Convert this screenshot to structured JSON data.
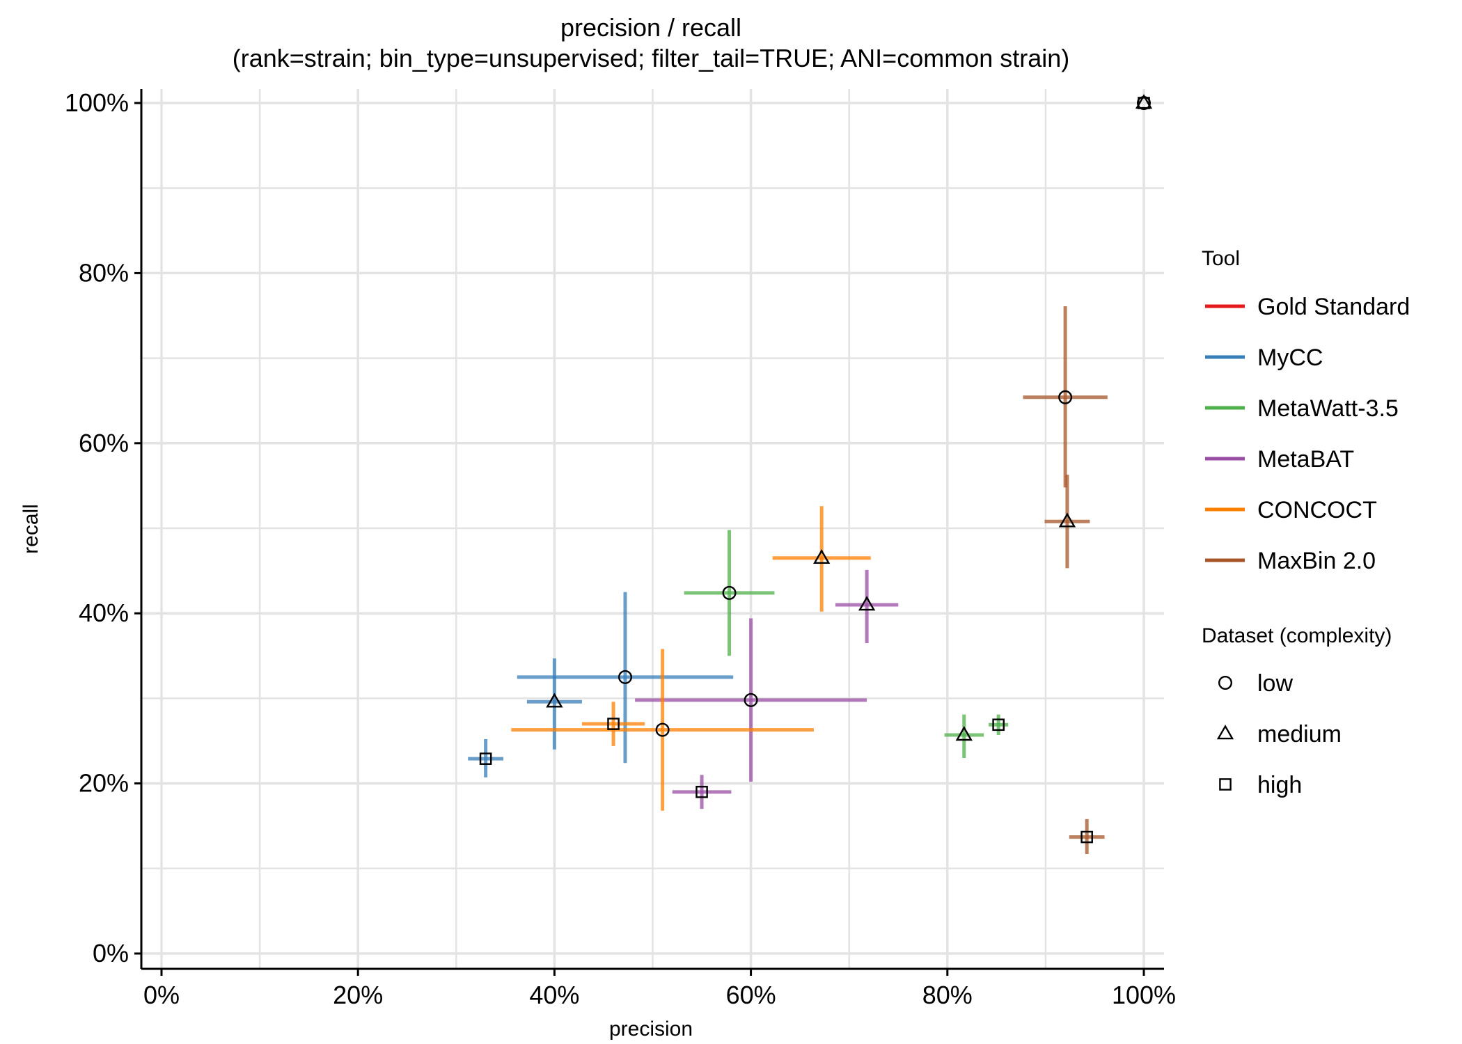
{
  "chart_data": {
    "type": "scatter",
    "title": "precision / recall",
    "subtitle": "(rank=strain; bin_type=unsupervised; filter_tail=TRUE; ANI=common strain)",
    "xlabel": "precision",
    "ylabel": "recall",
    "xlim": [
      -0.02,
      1.02
    ],
    "ylim": [
      -0.02,
      1.02
    ],
    "x_ticks": [
      0,
      0.2,
      0.4,
      0.6,
      0.8,
      1.0
    ],
    "x_tick_labels": [
      "0%",
      "20%",
      "40%",
      "60%",
      "80%",
      "100%"
    ],
    "y_ticks": [
      0,
      0.2,
      0.4,
      0.6,
      0.8,
      1.0
    ],
    "y_tick_labels": [
      "0%",
      "20%",
      "40%",
      "60%",
      "80%",
      "100%"
    ],
    "grid": true,
    "legend_position": "right",
    "legend_tool_title": "Tool",
    "legend_dataset_title": "Dataset (complexity)",
    "tools": [
      {
        "name": "Gold Standard",
        "color": "#e41a1c"
      },
      {
        "name": "MyCC",
        "color": "#377eb8"
      },
      {
        "name": "MetaWatt-3.5",
        "color": "#4daf4a"
      },
      {
        "name": "MetaBAT",
        "color": "#984ea3"
      },
      {
        "name": "CONCOCT",
        "color": "#ff7f00"
      },
      {
        "name": "MaxBin 2.0",
        "color": "#a65628"
      }
    ],
    "datasets": [
      {
        "name": "low",
        "shape": "circle"
      },
      {
        "name": "medium",
        "shape": "triangle"
      },
      {
        "name": "high",
        "shape": "square"
      }
    ],
    "points": [
      {
        "tool": "Gold Standard",
        "dataset": "low",
        "x": 1.0,
        "y": 1.0,
        "xerr": [
          1.0,
          1.0
        ],
        "yerr": [
          1.0,
          1.0
        ]
      },
      {
        "tool": "Gold Standard",
        "dataset": "medium",
        "x": 1.0,
        "y": 1.0,
        "xerr": [
          1.0,
          1.0
        ],
        "yerr": [
          1.0,
          1.0
        ]
      },
      {
        "tool": "Gold Standard",
        "dataset": "high",
        "x": 1.0,
        "y": 1.0,
        "xerr": [
          1.0,
          1.0
        ],
        "yerr": [
          1.0,
          1.0
        ]
      },
      {
        "tool": "MyCC",
        "dataset": "low",
        "x": 0.472,
        "y": 0.325,
        "xerr": [
          0.362,
          0.582
        ],
        "yerr": [
          0.224,
          0.425
        ]
      },
      {
        "tool": "MyCC",
        "dataset": "medium",
        "x": 0.4,
        "y": 0.296,
        "xerr": [
          0.372,
          0.428
        ],
        "yerr": [
          0.24,
          0.347
        ]
      },
      {
        "tool": "MyCC",
        "dataset": "high",
        "x": 0.33,
        "y": 0.229,
        "xerr": [
          0.312,
          0.348
        ],
        "yerr": [
          0.207,
          0.252
        ]
      },
      {
        "tool": "MetaWatt-3.5",
        "dataset": "low",
        "x": 0.578,
        "y": 0.424,
        "xerr": [
          0.532,
          0.624
        ],
        "yerr": [
          0.35,
          0.498
        ]
      },
      {
        "tool": "MetaWatt-3.5",
        "dataset": "medium",
        "x": 0.817,
        "y": 0.257,
        "xerr": [
          0.797,
          0.837
        ],
        "yerr": [
          0.23,
          0.281
        ]
      },
      {
        "tool": "MetaWatt-3.5",
        "dataset": "high",
        "x": 0.852,
        "y": 0.269,
        "xerr": [
          0.842,
          0.862
        ],
        "yerr": [
          0.257,
          0.281
        ]
      },
      {
        "tool": "MetaBAT",
        "dataset": "low",
        "x": 0.6,
        "y": 0.298,
        "xerr": [
          0.482,
          0.718
        ],
        "yerr": [
          0.202,
          0.394
        ]
      },
      {
        "tool": "MetaBAT",
        "dataset": "medium",
        "x": 0.718,
        "y": 0.41,
        "xerr": [
          0.686,
          0.75
        ],
        "yerr": [
          0.365,
          0.451
        ]
      },
      {
        "tool": "MetaBAT",
        "dataset": "high",
        "x": 0.55,
        "y": 0.19,
        "xerr": [
          0.52,
          0.58
        ],
        "yerr": [
          0.17,
          0.21
        ]
      },
      {
        "tool": "CONCOCT",
        "dataset": "low",
        "x": 0.51,
        "y": 0.263,
        "xerr": [
          0.356,
          0.664
        ],
        "yerr": [
          0.168,
          0.358
        ]
      },
      {
        "tool": "CONCOCT",
        "dataset": "medium",
        "x": 0.672,
        "y": 0.465,
        "xerr": [
          0.622,
          0.722
        ],
        "yerr": [
          0.402,
          0.526
        ]
      },
      {
        "tool": "CONCOCT",
        "dataset": "high",
        "x": 0.46,
        "y": 0.27,
        "xerr": [
          0.428,
          0.492
        ],
        "yerr": [
          0.244,
          0.296
        ]
      },
      {
        "tool": "MaxBin 2.0",
        "dataset": "low",
        "x": 0.92,
        "y": 0.654,
        "xerr": [
          0.877,
          0.963
        ],
        "yerr": [
          0.548,
          0.761
        ]
      },
      {
        "tool": "MaxBin 2.0",
        "dataset": "medium",
        "x": 0.922,
        "y": 0.508,
        "xerr": [
          0.899,
          0.945
        ],
        "yerr": [
          0.453,
          0.563
        ]
      },
      {
        "tool": "MaxBin 2.0",
        "dataset": "high",
        "x": 0.942,
        "y": 0.137,
        "xerr": [
          0.924,
          0.96
        ],
        "yerr": [
          0.117,
          0.158
        ]
      }
    ]
  }
}
